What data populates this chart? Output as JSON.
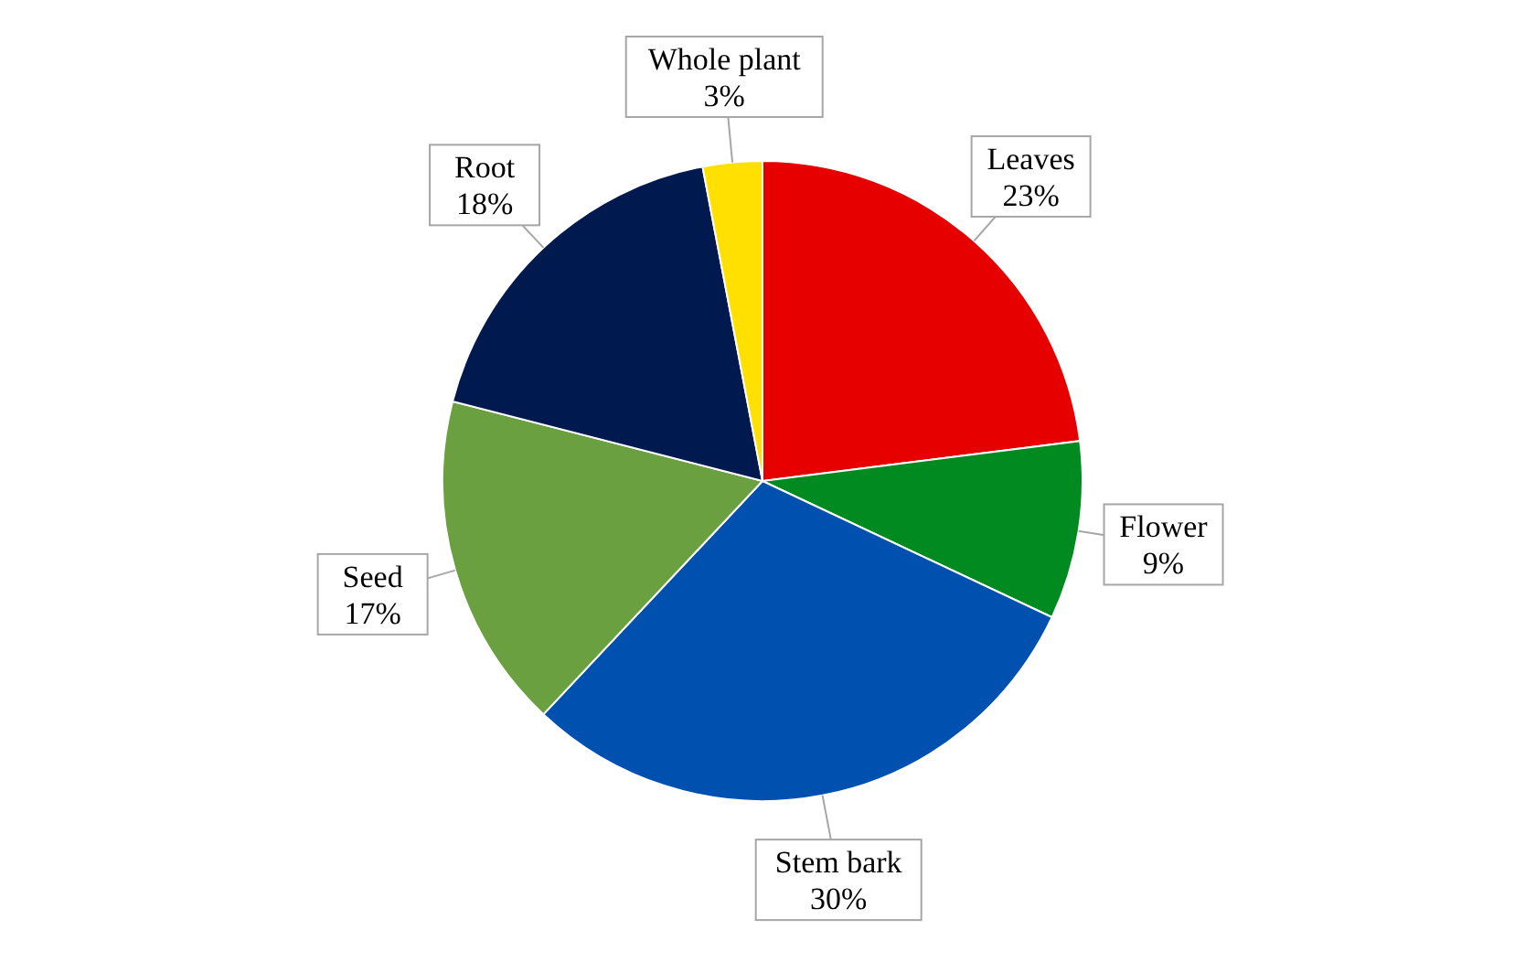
{
  "chart_data": {
    "type": "pie",
    "categories": [
      "Leaves",
      "Flower",
      "Stem bark",
      "Seed",
      "Root",
      "Whole plant"
    ],
    "values": [
      23,
      9,
      30,
      17,
      18,
      3
    ],
    "colors": [
      "#e60000",
      "#008a20",
      "#0050b0",
      "#6aa040",
      "#001a50",
      "#ffe000"
    ],
    "value_labels": [
      "23%",
      "9%",
      "30%",
      "17%",
      "18%",
      "3%"
    ]
  }
}
